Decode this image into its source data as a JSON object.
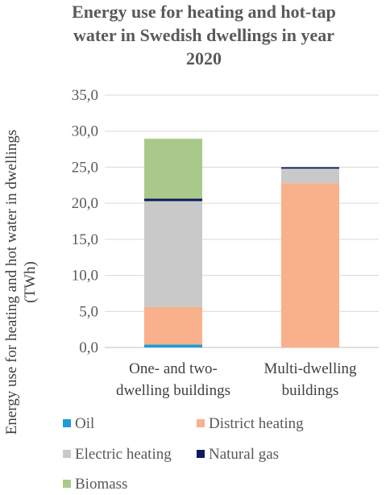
{
  "chart_data": {
    "type": "bar",
    "stacked": true,
    "title": [
      "Energy use for heating and hot-tap",
      "water in Swedish dwellings in year",
      "2020"
    ],
    "ylabel": [
      "Energy use for heating and hot water in dwellings",
      "(TWh)"
    ],
    "ylim": [
      0,
      35
    ],
    "yticks": [
      "0,0",
      "5,0",
      "10,0",
      "15,0",
      "20,0",
      "25,0",
      "30,0",
      "35,0"
    ],
    "categories": [
      [
        "One- and two-",
        "dwelling buildings"
      ],
      [
        "Multi-dwelling",
        "buildings"
      ]
    ],
    "series": [
      {
        "name": "Oil",
        "color": "#1f9bd7",
        "values": [
          0.4,
          0.0
        ]
      },
      {
        "name": "District heating",
        "color": "#f8b18a",
        "values": [
          5.2,
          22.8
        ]
      },
      {
        "name": "Electric heating",
        "color": "#c9c9c9",
        "values": [
          14.7,
          2.0
        ]
      },
      {
        "name": "Natural gas",
        "color": "#0d1b5c",
        "values": [
          0.35,
          0.2
        ]
      },
      {
        "name": "Biomass",
        "color": "#a9c98a",
        "values": [
          8.3,
          0.0
        ]
      }
    ],
    "legend_position": "bottom"
  }
}
